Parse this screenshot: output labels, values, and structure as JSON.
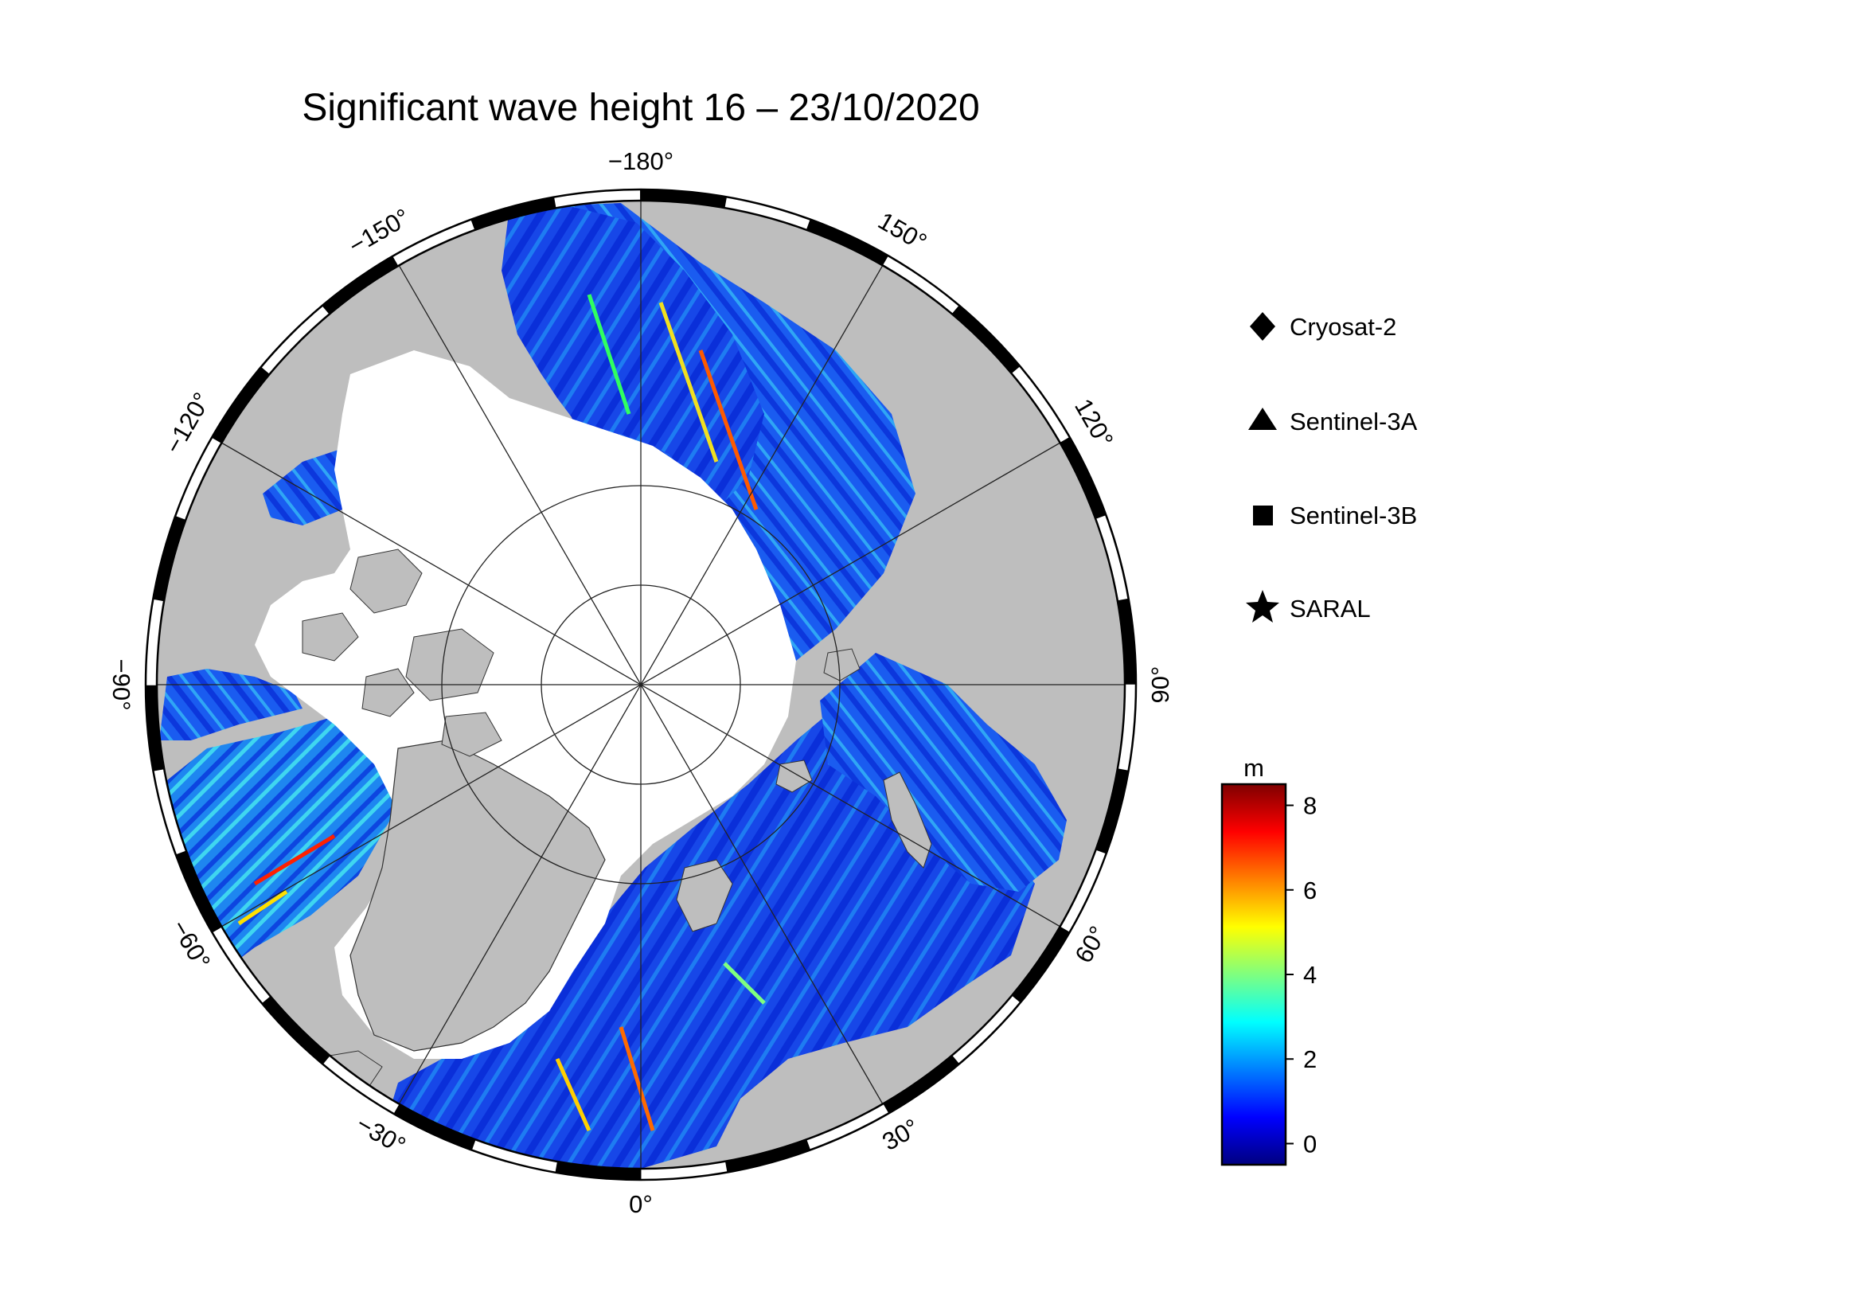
{
  "title": "Significant wave height 16 – 23/10/2020",
  "map": {
    "projection": "north polar stereographic",
    "land_color": "#bebebe",
    "ice_color": "#ffffff",
    "longitude_labels": [
      {
        "lon": -180,
        "text": "−180°"
      },
      {
        "lon": 150,
        "text": "150°"
      },
      {
        "lon": 120,
        "text": "120°"
      },
      {
        "lon": 90,
        "text": "90°"
      },
      {
        "lon": 60,
        "text": "60°"
      },
      {
        "lon": 30,
        "text": "30°"
      },
      {
        "lon": 0,
        "text": "0°"
      },
      {
        "lon": -30,
        "text": "−30°"
      },
      {
        "lon": -60,
        "text": "−60°"
      },
      {
        "lon": -90,
        "text": "−90°"
      },
      {
        "lon": -120,
        "text": "−120°"
      },
      {
        "lon": -150,
        "text": "−150°"
      }
    ]
  },
  "legend": {
    "items": [
      {
        "symbol": "diamond",
        "label": "Cryosat-2"
      },
      {
        "symbol": "triangle",
        "label": "Sentinel-3A"
      },
      {
        "symbol": "square",
        "label": "Sentinel-3B"
      },
      {
        "symbol": "star",
        "label": "SARAL"
      }
    ]
  },
  "colorbar": {
    "unit": "m",
    "min": -0.5,
    "max": 8.5,
    "ticks": [
      {
        "value": 0,
        "text": "0"
      },
      {
        "value": 2,
        "text": "2"
      },
      {
        "value": 4,
        "text": "4"
      },
      {
        "value": 6,
        "text": "6"
      },
      {
        "value": 8,
        "text": "8"
      }
    ],
    "colors": [
      "#00007f",
      "#0000ff",
      "#007fff",
      "#00ffff",
      "#7fff7f",
      "#ffff00",
      "#ff7f00",
      "#ff0000",
      "#7f0000"
    ]
  }
}
